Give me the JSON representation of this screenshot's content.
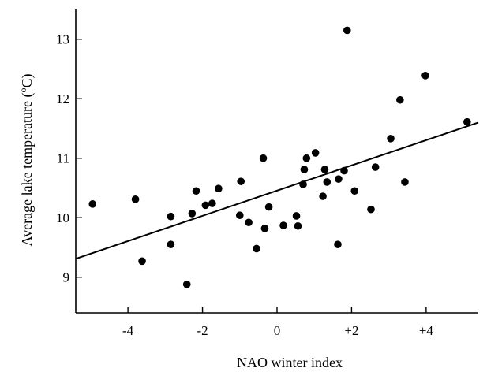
{
  "chart_data": {
    "type": "scatter",
    "title": "",
    "xlabel": "NAO winter index",
    "ylabel_main": "Average lake temperature (",
    "ylabel_sup": "o",
    "ylabel_end": "C)",
    "xlim": [
      -5.4,
      5.4
    ],
    "ylim": [
      8.4,
      13.5
    ],
    "x_ticks": [
      -4,
      -2,
      0,
      2,
      4
    ],
    "x_tick_labels": [
      "-4",
      "-2",
      "0",
      "+2",
      "+4"
    ],
    "y_ticks": [
      9,
      10,
      11,
      12,
      13
    ],
    "y_tick_labels": [
      "9",
      "10",
      "11",
      "12",
      "13"
    ],
    "grid": false,
    "series": [
      {
        "points": [
          [
            -4.95,
            10.23
          ],
          [
            -3.8,
            10.31
          ],
          [
            -3.62,
            9.27
          ],
          [
            -2.85,
            10.02
          ],
          [
            -2.85,
            9.55
          ],
          [
            -2.42,
            8.88
          ],
          [
            -2.28,
            10.07
          ],
          [
            -2.17,
            10.45
          ],
          [
            -1.92,
            10.21
          ],
          [
            -1.74,
            10.24
          ],
          [
            -1.57,
            10.49
          ],
          [
            -1.0,
            10.04
          ],
          [
            -0.97,
            10.61
          ],
          [
            -0.76,
            9.92
          ],
          [
            -0.55,
            9.48
          ],
          [
            -0.37,
            11.0
          ],
          [
            -0.33,
            9.82
          ],
          [
            -0.22,
            10.18
          ],
          [
            0.17,
            9.87
          ],
          [
            0.52,
            10.03
          ],
          [
            0.56,
            9.86
          ],
          [
            0.7,
            10.56
          ],
          [
            0.73,
            10.81
          ],
          [
            0.79,
            11.0
          ],
          [
            1.03,
            11.09
          ],
          [
            1.23,
            10.36
          ],
          [
            1.28,
            10.81
          ],
          [
            1.34,
            10.6
          ],
          [
            1.63,
            9.55
          ],
          [
            1.65,
            10.65
          ],
          [
            1.8,
            10.79
          ],
          [
            1.88,
            13.15
          ],
          [
            2.08,
            10.45
          ],
          [
            2.52,
            10.14
          ],
          [
            2.64,
            10.85
          ],
          [
            3.05,
            11.33
          ],
          [
            3.3,
            11.98
          ],
          [
            3.43,
            10.6
          ],
          [
            3.98,
            12.39
          ],
          [
            5.1,
            11.61
          ]
        ]
      }
    ],
    "fit_line": {
      "x": [
        -5.4,
        5.4
      ],
      "y": [
        9.31,
        11.6
      ]
    }
  }
}
